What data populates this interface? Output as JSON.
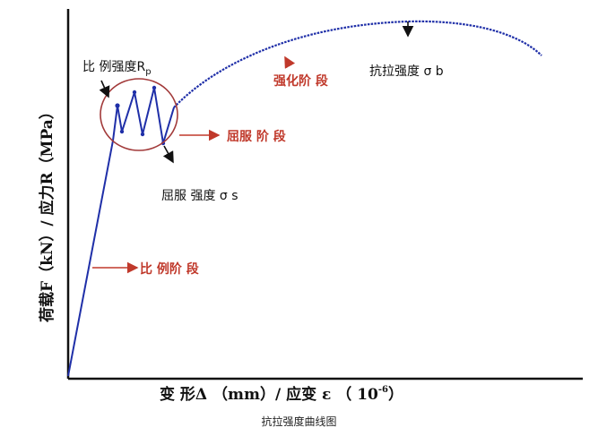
{
  "diagram": {
    "y_axis_title": "荷载F（kN）/ 应力R（MPa）",
    "x_axis_title_main": "变 形Δ （mm）/  应变  ε （ 10",
    "x_axis_title_exp": "-6",
    "x_axis_title_close": "）",
    "labels": {
      "proportional_limit": "比 例强度R",
      "proportional_limit_sub": "p",
      "strengthening_stage": "强化阶 段",
      "tensile_strength": "抗拉强度 σ b",
      "yield_stage": "屈服 阶 段",
      "yield_strength": "屈服 强度 σ s",
      "proportional_stage": "比 例阶 段"
    },
    "colors": {
      "curve": "#1f2fa8",
      "axes": "#111111",
      "circle": "#a23a3a",
      "red_label": "#c0392b",
      "marker": "#1f2fa8"
    }
  },
  "caption": "抗拉强度曲线图"
}
